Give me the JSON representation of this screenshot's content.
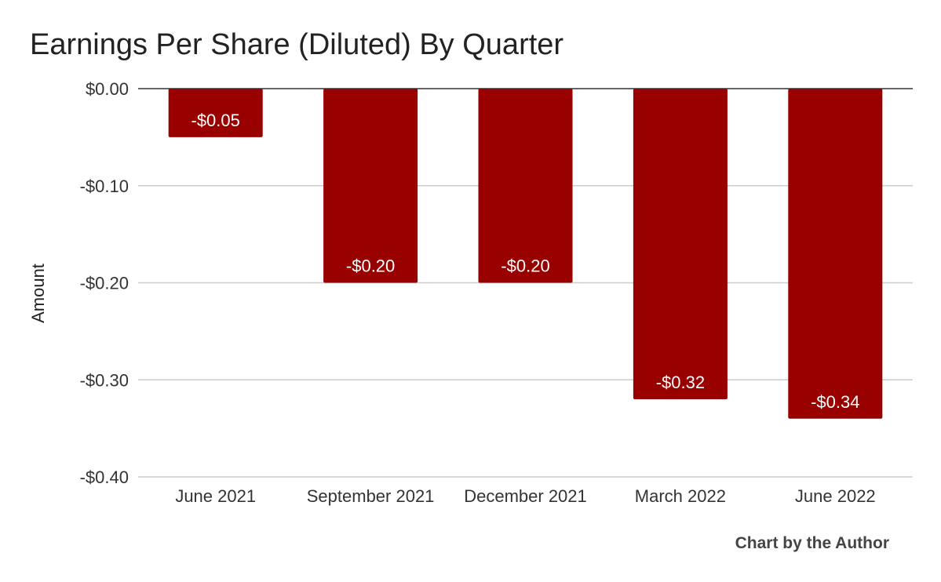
{
  "chart_data": {
    "type": "bar",
    "title": "Earnings Per Share (Diluted) By Quarter",
    "xlabel": "",
    "ylabel": "Amount",
    "categories": [
      "June 2021",
      "September 2021",
      "December 2021",
      "March 2022",
      "June 2022"
    ],
    "values": [
      -0.05,
      -0.2,
      -0.2,
      -0.32,
      -0.34
    ],
    "data_labels": [
      "-$0.05",
      "-$0.20",
      "-$0.20",
      "-$0.32",
      "-$0.34"
    ],
    "ylim": [
      -0.4,
      0.0
    ],
    "yticks": [
      0.0,
      -0.1,
      -0.2,
      -0.3,
      -0.4
    ],
    "ytick_labels": [
      "$0.00",
      "-$0.10",
      "-$0.20",
      "-$0.30",
      "-$0.40"
    ],
    "grid": true,
    "legend": "none",
    "bar_color": "#990000",
    "gridline_color": "#cccccc",
    "zero_line_color": "#333333",
    "source_note": "Chart by the Author"
  }
}
